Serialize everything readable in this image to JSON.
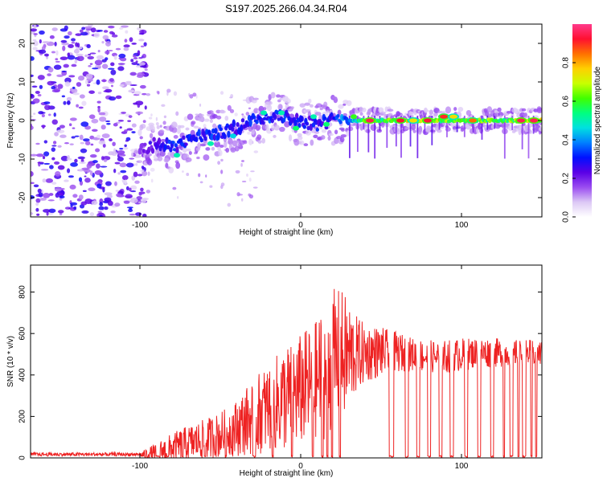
{
  "figure_title": "S197.2025.266.04.34.R04",
  "chart_data": [
    {
      "type": "heatmap",
      "name": "spectrogram",
      "title": "S197.2025.266.04.34.R04",
      "xlabel": "Height of straight line (km)",
      "ylabel": "Frequency (Hz)",
      "xlim": [
        -168,
        150
      ],
      "ylim": [
        -25,
        25
      ],
      "xticks": [
        -100,
        0,
        100
      ],
      "yticks": [
        -20,
        -10,
        0,
        10,
        20
      ],
      "colorbar": {
        "label": "Normalized spectral amplitude",
        "range": [
          0.0,
          1.0
        ],
        "ticks": [
          0.0,
          0.2,
          0.4,
          0.6,
          0.8
        ],
        "colors": [
          "#ffffff",
          "#dcc8f5",
          "#9a4cf0",
          "#5a00e6",
          "#0010ff",
          "#0080ff",
          "#00e0e0",
          "#00ff80",
          "#40ff00",
          "#c8ff00",
          "#ffd000",
          "#ff7000",
          "#ff1030",
          "#ff3a8c"
        ]
      },
      "noise_region": {
        "x_range": [
          -168,
          -96
        ],
        "amplitude_range": [
          0.05,
          0.3
        ]
      },
      "ridge": [
        {
          "x": -100,
          "freq": -8,
          "amp": 0.2
        },
        {
          "x": -90,
          "freq": -6,
          "amp": 0.28
        },
        {
          "x": -80,
          "freq": -7,
          "amp": 0.32
        },
        {
          "x": -70,
          "freq": -5,
          "amp": 0.3
        },
        {
          "x": -60,
          "freq": -4,
          "amp": 0.33
        },
        {
          "x": -50,
          "freq": -3,
          "amp": 0.32
        },
        {
          "x": -40,
          "freq": -2,
          "amp": 0.3
        },
        {
          "x": -30,
          "freq": 0,
          "amp": 0.35
        },
        {
          "x": -20,
          "freq": 1,
          "amp": 0.34
        },
        {
          "x": -10,
          "freq": 1,
          "amp": 0.33
        },
        {
          "x": 0,
          "freq": 0,
          "amp": 0.3
        },
        {
          "x": 10,
          "freq": -1,
          "amp": 0.3
        },
        {
          "x": 20,
          "freq": 0,
          "amp": 0.3
        },
        {
          "x": 30,
          "freq": 0,
          "amp": 0.45
        },
        {
          "x": 40,
          "freq": 0,
          "amp": 0.6
        },
        {
          "x": 60,
          "freq": 0,
          "amp": 0.7
        },
        {
          "x": 80,
          "freq": 0,
          "amp": 0.75
        },
        {
          "x": 100,
          "freq": 0,
          "amp": 0.6
        },
        {
          "x": 120,
          "freq": 0,
          "amp": 0.65
        },
        {
          "x": 150,
          "freq": 0,
          "amp": 0.7
        }
      ],
      "peaks": [
        {
          "x": 43,
          "freq": 0,
          "amp": 0.95
        },
        {
          "x": 62,
          "freq": 0,
          "amp": 0.92
        },
        {
          "x": 70,
          "freq": 0,
          "amp": 0.75
        },
        {
          "x": 79,
          "freq": 0,
          "amp": 0.93
        },
        {
          "x": 89,
          "freq": 1,
          "amp": 0.9
        },
        {
          "x": 95,
          "freq": 1,
          "amp": 0.75
        },
        {
          "x": 107,
          "freq": 0,
          "amp": 0.85
        },
        {
          "x": 137,
          "freq": 0,
          "amp": 0.95
        },
        {
          "x": 145,
          "freq": 0,
          "amp": 0.95
        }
      ],
      "bright_spots": [
        {
          "x": -77,
          "freq": -9,
          "amp": 0.5
        },
        {
          "x": -56,
          "freq": -6,
          "amp": 0.5
        },
        {
          "x": -42,
          "freq": -4,
          "amp": 0.45
        },
        {
          "x": -23,
          "freq": 2,
          "amp": 0.5
        },
        {
          "x": -12,
          "freq": 2,
          "amp": 0.5
        },
        {
          "x": -3,
          "freq": -2,
          "amp": 0.55
        },
        {
          "x": 8,
          "freq": 1,
          "amp": 0.5
        },
        {
          "x": 16,
          "freq": -1,
          "amp": 0.55
        },
        {
          "x": 33,
          "freq": 1,
          "amp": 0.6
        }
      ]
    },
    {
      "type": "line",
      "name": "snr",
      "title": "",
      "xlabel": "Height of straight line (km)",
      "ylabel": "SNR (10 * v/v)",
      "xlim": [
        -168,
        150
      ],
      "ylim": [
        0,
        930
      ],
      "xticks": [
        -100,
        0,
        100
      ],
      "yticks": [
        0,
        200,
        400,
        600,
        800
      ],
      "color": "#ee2222",
      "envelope": {
        "x": [
          -168,
          -100,
          -90,
          -80,
          -70,
          -60,
          -50,
          -40,
          -30,
          -20,
          -10,
          0,
          10,
          15,
          20,
          25,
          30,
          35,
          40,
          50,
          60,
          70,
          80,
          90,
          100,
          110,
          120,
          130,
          140,
          150
        ],
        "base": [
          10,
          12,
          20,
          40,
          60,
          80,
          100,
          130,
          180,
          220,
          260,
          300,
          350,
          380,
          420,
          450,
          470,
          480,
          490,
          500,
          500,
          490,
          480,
          480,
          490,
          500,
          500,
          500,
          500,
          500
        ],
        "amplitude": [
          10,
          15,
          60,
          90,
          110,
          120,
          140,
          170,
          230,
          270,
          320,
          340,
          360,
          420,
          450,
          420,
          330,
          230,
          180,
          150,
          120,
          100,
          100,
          100,
          100,
          90,
          90,
          80,
          80,
          80
        ]
      },
      "dropouts": [
        [
          -90,
          -88
        ],
        [
          -83,
          -82
        ],
        [
          -74,
          -73
        ],
        [
          -60,
          -59
        ],
        [
          -47,
          -46
        ],
        [
          -30,
          -28
        ],
        [
          -18,
          -17
        ],
        [
          -6,
          -5
        ],
        [
          7,
          8
        ],
        [
          13,
          14
        ],
        [
          16,
          17
        ],
        [
          19,
          20
        ],
        [
          24,
          25
        ],
        [
          55,
          58
        ],
        [
          65,
          67
        ],
        [
          72,
          74
        ],
        [
          79,
          81
        ],
        [
          86,
          88
        ],
        [
          93,
          95
        ],
        [
          102,
          104
        ],
        [
          110,
          112
        ],
        [
          118,
          120
        ],
        [
          126,
          127
        ],
        [
          130,
          132
        ],
        [
          135,
          136
        ],
        [
          138,
          140
        ],
        [
          143,
          144
        ],
        [
          146,
          147
        ]
      ]
    }
  ]
}
